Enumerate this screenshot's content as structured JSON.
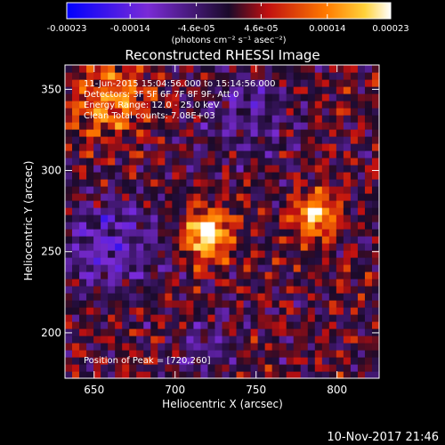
{
  "colorbar": {
    "tick_labels": [
      "-0.00023",
      "-0.00014",
      "-4.6e-05",
      "4.6e-05",
      "0.00014",
      "0.00023"
    ],
    "tick_values": [
      -0.00023,
      -0.00014,
      -4.6e-05,
      4.6e-05,
      0.00014,
      0.00023
    ],
    "range": [
      -0.00023,
      0.00023
    ],
    "unit_label": "(photons cm⁻² s⁻¹ asec⁻²)",
    "colors": [
      "#0000ff",
      "#7a2bd6",
      "#1a0a2a",
      "#c01010",
      "#ff7a00",
      "#ffffff"
    ]
  },
  "chart_data": {
    "type": "heatmap",
    "title": "Reconstructed RHESSI Image",
    "xlabel": "Heliocentric X (arcsec)",
    "ylabel": "Heliocentric Y (arcsec)",
    "xlim": [
      632,
      826
    ],
    "ylim": [
      172,
      365
    ],
    "x_ticks": [
      650,
      700,
      750,
      800
    ],
    "y_ticks": [
      200,
      250,
      300,
      350
    ],
    "x_tick_labels": [
      "650",
      "700",
      "750",
      "800"
    ],
    "y_tick_labels": [
      "200",
      "250",
      "300",
      "350"
    ],
    "value_range": [
      -0.00023,
      0.00023
    ],
    "sources": [
      {
        "x": 720,
        "y": 260,
        "peak": 0.00023
      },
      {
        "x": 786,
        "y": 273,
        "peak": 0.00019
      },
      {
        "x": 660,
        "y": 345,
        "peak": 0.00012
      }
    ],
    "info_lines": [
      "11-Jun-2015 15:04:56.000 to 15:14:56.000",
      "Detectors: 3F 5F 6F 7F 8F 9F, Att 0",
      "Energy Range: 12.0 - 25.0 keV",
      "Clean     Total counts: 7.08E+03"
    ],
    "peak_text": "Position of Peak = [720,260]"
  },
  "footer": {
    "timestamp": "10-Nov-2017 21:46"
  }
}
